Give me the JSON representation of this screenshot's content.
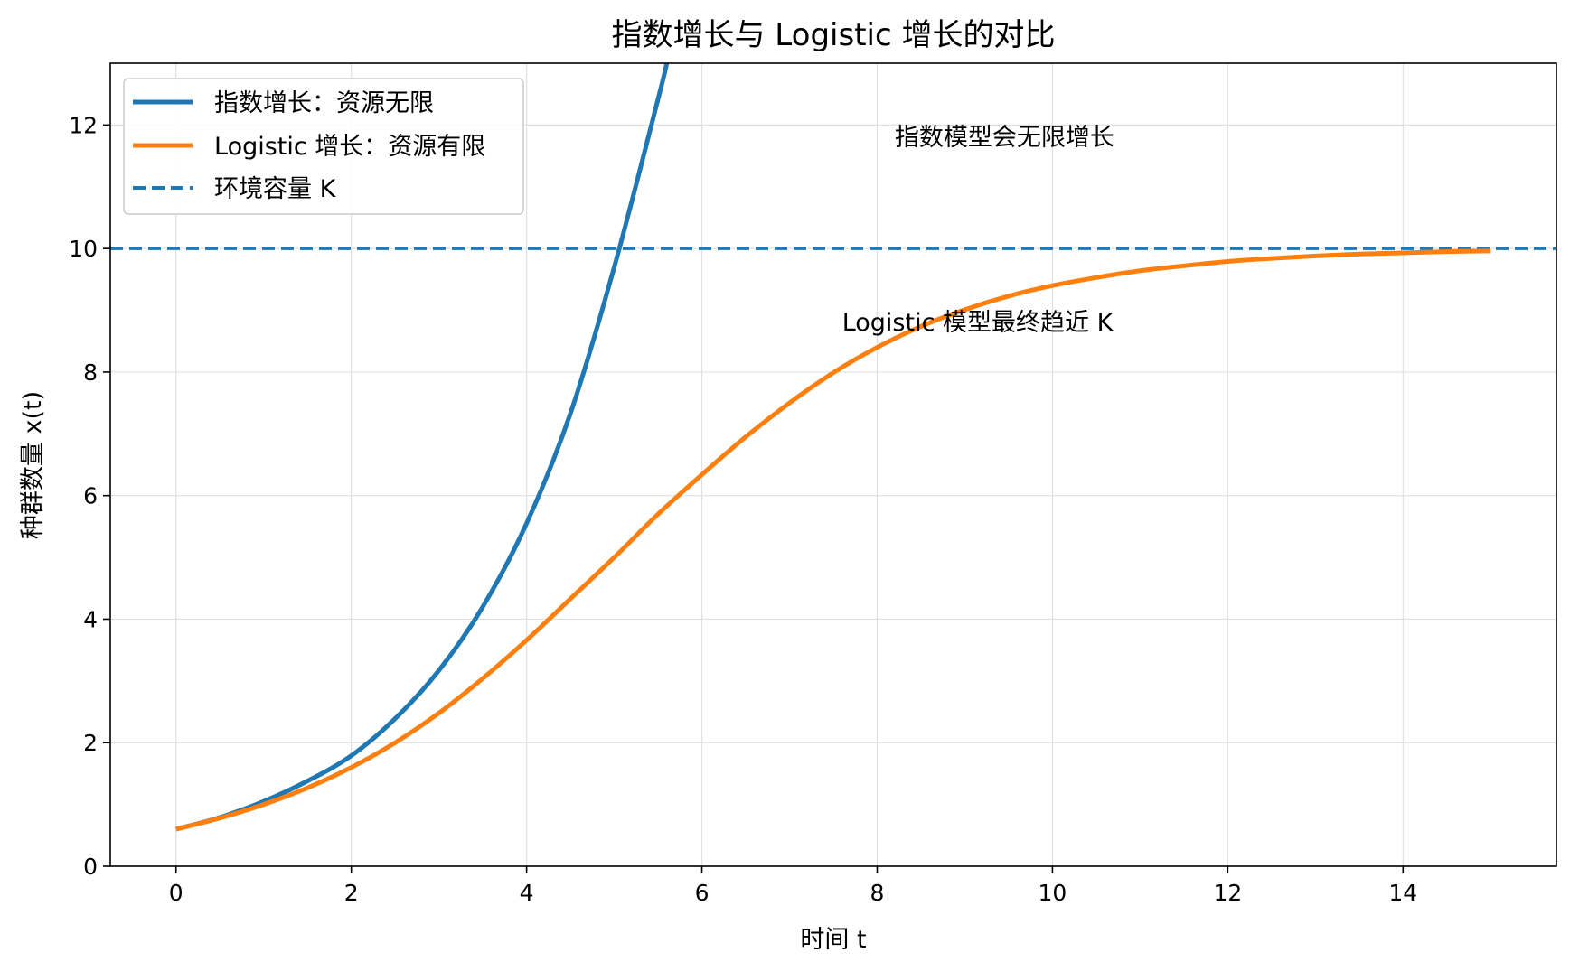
{
  "chart_data": {
    "type": "line",
    "title": "指数增长与 Logistic 增长的对比",
    "xlabel": "时间 t",
    "ylabel": "种群数量 x(t)",
    "xlim": [
      -0.75,
      15.75
    ],
    "ylim": [
      0,
      13
    ],
    "x_ticks": [
      0,
      2,
      4,
      6,
      8,
      10,
      12,
      14
    ],
    "y_ticks": [
      0,
      2,
      4,
      6,
      8,
      10,
      12
    ],
    "grid": true,
    "legend_position": "top-left",
    "series": [
      {
        "name": "指数增长：资源无限",
        "color": "#1f77b4",
        "style": "solid",
        "x": [
          0,
          0.5,
          1,
          1.5,
          2,
          2.5,
          3,
          3.5,
          4,
          4.5,
          5,
          5.5,
          5.6
        ],
        "y": [
          0.6,
          0.79,
          1.05,
          1.38,
          1.79,
          2.39,
          3.17,
          4.2,
          5.55,
          7.33,
          9.7,
          12.42,
          13.0
        ]
      },
      {
        "name": "Logistic 增长：资源有限",
        "color": "#ff7f0e",
        "style": "solid",
        "x": [
          0,
          0.5,
          1,
          1.5,
          2,
          2.5,
          3,
          3.5,
          4,
          4.5,
          5,
          5.5,
          6,
          6.5,
          7,
          7.5,
          8,
          8.5,
          9,
          9.5,
          10,
          10.5,
          11,
          11.5,
          12,
          12.5,
          13,
          13.5,
          14,
          14.5,
          15
        ],
        "y": [
          0.6,
          0.78,
          1.0,
          1.27,
          1.6,
          2.0,
          2.48,
          3.04,
          3.66,
          4.33,
          5.0,
          5.7,
          6.34,
          6.95,
          7.5,
          7.99,
          8.4,
          8.74,
          9.01,
          9.23,
          9.4,
          9.53,
          9.64,
          9.72,
          9.79,
          9.84,
          9.88,
          9.91,
          9.93,
          9.95,
          9.96
        ]
      },
      {
        "name": "环境容量 K",
        "color": "#1f77b4",
        "style": "dashed",
        "hline": 10
      }
    ],
    "annotations": [
      {
        "text": "指数模型会无限增长",
        "x": 8.2,
        "y": 11.8
      },
      {
        "text": "Logistic 模型最终趋近 K",
        "x": 7.6,
        "y": 8.8
      }
    ]
  }
}
